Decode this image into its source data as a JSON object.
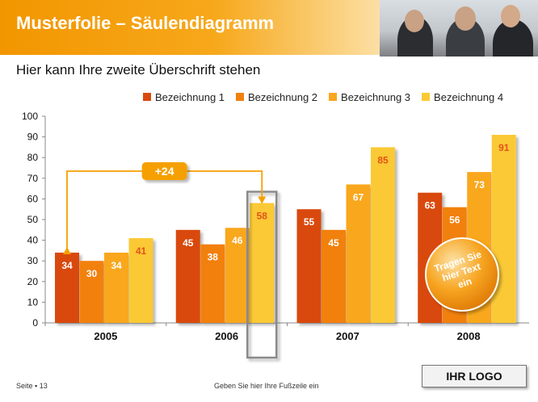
{
  "header": {
    "title": "Musterfolie – Säulendiagramm"
  },
  "subtitle": "Hier kann Ihre zweite Überschrift stehen",
  "chart_data": {
    "type": "bar",
    "categories": [
      "2005",
      "2006",
      "2007",
      "2008"
    ],
    "series": [
      {
        "name": "Bezeichnung 1",
        "values": [
          34,
          45,
          55,
          63
        ],
        "color": "#d94a0a"
      },
      {
        "name": "Bezeichnung 2",
        "values": [
          30,
          38,
          45,
          56
        ],
        "color": "#f2800f"
      },
      {
        "name": "Bezeichnung 3",
        "values": [
          34,
          46,
          67,
          73
        ],
        "color": "#f9a71c"
      },
      {
        "name": "Bezeichnung 4",
        "values": [
          41,
          58,
          85,
          91
        ],
        "color": "#fbc935"
      }
    ],
    "ylim": [
      0,
      100
    ],
    "yticks": [
      0,
      10,
      20,
      30,
      40,
      50,
      60,
      70,
      80,
      90,
      100
    ],
    "gridlines": false,
    "legend_position": "top",
    "annotations": {
      "difference_label": "+24",
      "callout_text": [
        "Tragen Sie",
        "hier Text",
        "ein"
      ]
    }
  },
  "footer": {
    "page_label": "Seite ▪ 13",
    "footer_text": "Geben Sie hier Ihre Fußzeile ein",
    "logo_text": "IHR LOGO"
  }
}
